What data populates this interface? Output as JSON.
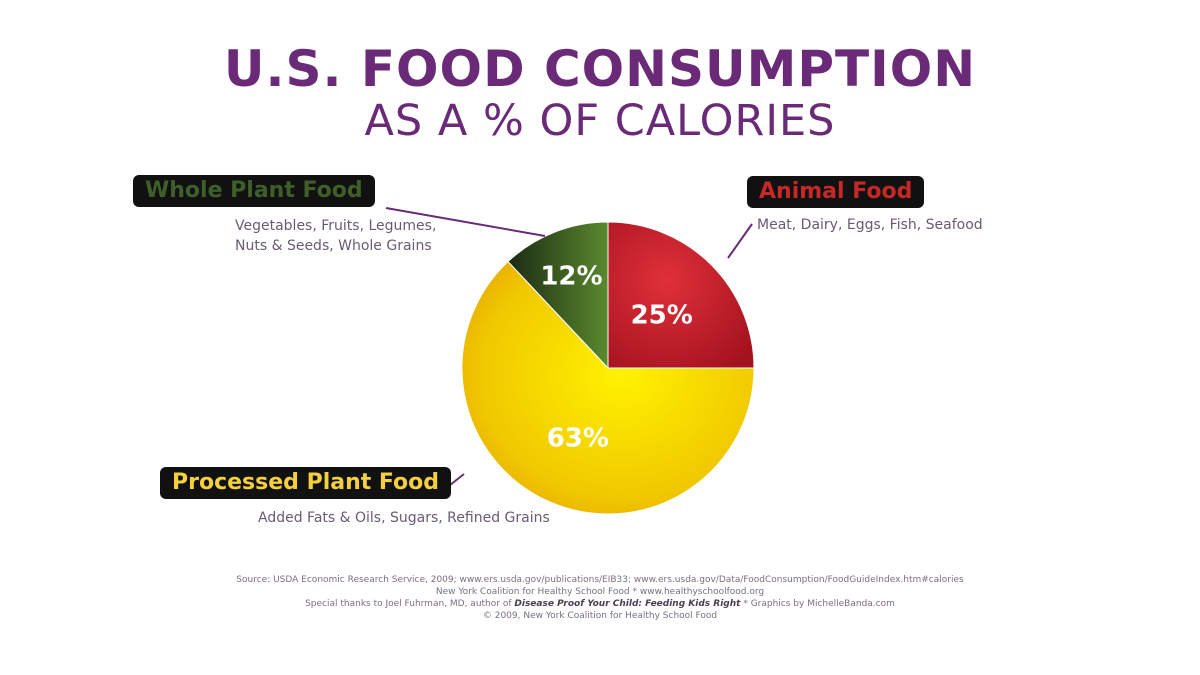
{
  "title": "U.S. FOOD CONSUMPTION",
  "subtitle": "AS A % OF CALORIES",
  "chart_data": {
    "type": "pie",
    "slices": [
      {
        "name": "Animal Food",
        "value": 25,
        "label": "25%",
        "description": "Meat, Dairy, Eggs, Fish, Seafood",
        "color": "#b71c2a",
        "label_color": "#c62828"
      },
      {
        "name": "Processed Plant Food",
        "value": 63,
        "label": "63%",
        "description": "Added Fats & Oils, Sugars, Refined Grains",
        "color": "#f2d000",
        "label_color": "#f4d03f"
      },
      {
        "name": "Whole Plant Food",
        "value": 12,
        "label": "12%",
        "description_lines": [
          "Vegetables, Fruits, Legumes,",
          "Nuts & Seeds, Whole Grains"
        ],
        "color": "#3d5e22",
        "label_color": "#3f5f2a"
      }
    ]
  },
  "source": {
    "line1": "Source: USDA Economic Research Service, 2009; www.ers.usda.gov/publications/EIB33; www.ers.usda.gov/Data/FoodConsumption/FoodGuideIndex.htm#calories",
    "line2": "New York Coalition for Healthy School Food * www.healthyschoolfood.org",
    "line3_before": "Special thanks to Joel Fuhrman, MD, author of",
    "line3_book": "Disease Proof Your Child: Feeding Kids Right",
    "line3_after": "* Graphics by MichelleBanda.com",
    "line4": "© 2009, New York Coalition for Healthy School Food"
  }
}
